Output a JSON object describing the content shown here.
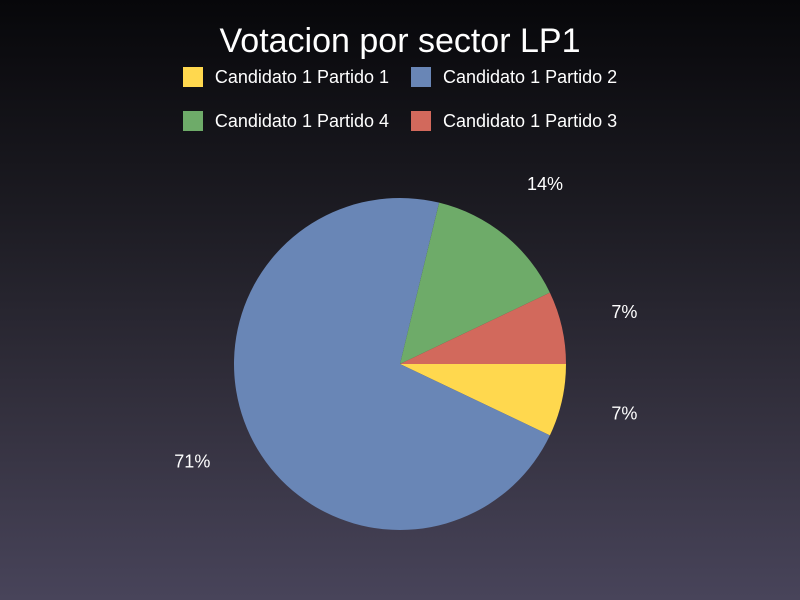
{
  "chart_data": {
    "type": "pie",
    "title": "Votacion por sector LP1",
    "legend_placement": "top",
    "series": [
      {
        "name": "Candidato 1 Partido 1",
        "value": 7,
        "label": "7%",
        "color": "#ffd84e"
      },
      {
        "name": "Candidato 1 Partido 2",
        "value": 71,
        "label": "71%",
        "color": "#6986b6"
      },
      {
        "name": "Candidato 1 Partido 4",
        "value": 14,
        "label": "14%",
        "color": "#6eab69"
      },
      {
        "name": "Candidato 1 Partido 3",
        "value": 7,
        "label": "7%",
        "color": "#d2695c"
      }
    ]
  }
}
